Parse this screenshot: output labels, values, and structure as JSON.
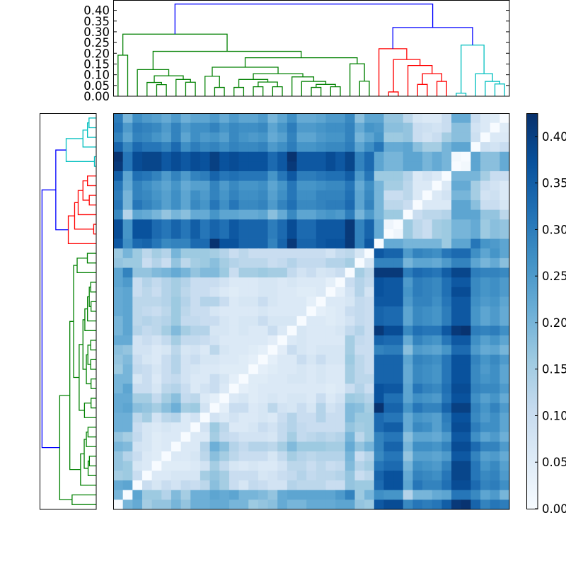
{
  "chart_data": {
    "type": "heatmap",
    "description_kind": "clustered distance matrix with dendrograms",
    "leaves": 41,
    "color_scale": {
      "cmap": "Blues",
      "range": [
        0,
        0.425
      ],
      "stops": [
        "#f7fbff",
        "#deebf7",
        "#c6dbef",
        "#9ecae1",
        "#6baed6",
        "#4292c6",
        "#2171b5",
        "#08519c",
        "#08306b"
      ]
    },
    "colorbar": {
      "ticks": [
        0.0,
        0.05,
        0.1,
        0.15,
        0.2,
        0.25,
        0.3,
        0.35,
        0.4
      ],
      "tick_labels": [
        "0.00",
        "0.05",
        "0.10",
        "0.15",
        "0.20",
        "0.25",
        "0.30",
        "0.35",
        "0.40"
      ]
    },
    "dendrogram_axis": {
      "range": [
        0,
        0.448
      ],
      "ticks": [
        0.0,
        0.05,
        0.1,
        0.15,
        0.2,
        0.25,
        0.3,
        0.35,
        0.4
      ],
      "tick_labels": [
        "0.00",
        "0.05",
        "0.10",
        "0.15",
        "0.20",
        "0.25",
        "0.30",
        "0.35",
        "0.40"
      ]
    },
    "link_colors": {
      "g": "#008000",
      "r": "#ff0000",
      "c": "#00bfbf",
      "b": "#0000ff"
    },
    "linkage": [
      [
        4,
        5,
        0.054,
        "g"
      ],
      [
        3,
        41,
        0.064,
        "g"
      ],
      [
        7,
        8,
        0.065,
        "g"
      ],
      [
        6,
        43,
        0.078,
        "g"
      ],
      [
        42,
        44,
        0.095,
        "g"
      ],
      [
        2,
        45,
        0.124,
        "g"
      ],
      [
        10,
        11,
        0.041,
        "g"
      ],
      [
        9,
        47,
        0.093,
        "g"
      ],
      [
        12,
        13,
        0.041,
        "g"
      ],
      [
        14,
        15,
        0.044,
        "g"
      ],
      [
        16,
        17,
        0.044,
        "g"
      ],
      [
        50,
        51,
        0.066,
        "g"
      ],
      [
        49,
        52,
        0.078,
        "g"
      ],
      [
        20,
        21,
        0.041,
        "g"
      ],
      [
        22,
        23,
        0.044,
        "g"
      ],
      [
        54,
        55,
        0.055,
        "g"
      ],
      [
        19,
        56,
        0.069,
        "g"
      ],
      [
        18,
        57,
        0.09,
        "g"
      ],
      [
        53,
        58,
        0.105,
        "g"
      ],
      [
        48,
        59,
        0.135,
        "g"
      ],
      [
        25,
        26,
        0.07,
        "g"
      ],
      [
        24,
        61,
        0.151,
        "g"
      ],
      [
        60,
        62,
        0.179,
        "g"
      ],
      [
        46,
        63,
        0.209,
        "g"
      ],
      [
        0,
        1,
        0.191,
        "g"
      ],
      [
        65,
        64,
        0.289,
        "g"
      ],
      [
        28,
        29,
        0.02,
        "r"
      ],
      [
        31,
        32,
        0.055,
        "r"
      ],
      [
        33,
        34,
        0.069,
        "r"
      ],
      [
        68,
        69,
        0.105,
        "r"
      ],
      [
        30,
        70,
        0.143,
        "r"
      ],
      [
        67,
        71,
        0.171,
        "r"
      ],
      [
        27,
        72,
        0.221,
        "r"
      ],
      [
        35,
        36,
        0.014,
        "c"
      ],
      [
        39,
        40,
        0.057,
        "c"
      ],
      [
        38,
        75,
        0.069,
        "c"
      ],
      [
        37,
        76,
        0.105,
        "c"
      ],
      [
        74,
        77,
        0.238,
        "c"
      ],
      [
        73,
        78,
        0.32,
        "b"
      ],
      [
        66,
        79,
        0.429,
        "b"
      ]
    ],
    "matrix_lower": [
      [
        0
      ],
      [
        0.2,
        0
      ],
      [
        0.22,
        0.23,
        0
      ],
      [
        0.15,
        0.16,
        0.1,
        0
      ],
      [
        0.17,
        0.16,
        0.07,
        0.06,
        0
      ],
      [
        0.17,
        0.13,
        0.1,
        0.06,
        0.05,
        0
      ],
      [
        0.2,
        0.19,
        0.08,
        0.07,
        0.05,
        0.06,
        0
      ],
      [
        0.17,
        0.15,
        0.11,
        0.07,
        0.05,
        0.06,
        0.06,
        0
      ],
      [
        0.21,
        0.21,
        0.1,
        0.07,
        0.06,
        0.07,
        0.06,
        0.06,
        0
      ],
      [
        0.21,
        0.21,
        0.12,
        0.15,
        0.08,
        0.12,
        0.13,
        0.06,
        0.08,
        0
      ],
      [
        0.22,
        0.23,
        0.18,
        0.17,
        0.15,
        0.18,
        0.21,
        0.15,
        0.16,
        0.08,
        0
      ],
      [
        0.22,
        0.22,
        0.15,
        0.15,
        0.11,
        0.15,
        0.18,
        0.11,
        0.12,
        0.06,
        0.04,
        0
      ],
      [
        0.2,
        0.23,
        0.1,
        0.1,
        0.07,
        0.12,
        0.13,
        0.1,
        0.06,
        0.08,
        0.1,
        0.06,
        0
      ],
      [
        0.2,
        0.2,
        0.07,
        0.1,
        0.06,
        0.1,
        0.11,
        0.08,
        0.06,
        0.06,
        0.1,
        0.07,
        0.04,
        0
      ],
      [
        0.16,
        0.2,
        0.11,
        0.1,
        0.07,
        0.1,
        0.13,
        0.08,
        0.07,
        0.06,
        0.06,
        0.05,
        0.05,
        0.05,
        0
      ],
      [
        0.17,
        0.19,
        0.1,
        0.07,
        0.06,
        0.1,
        0.13,
        0.08,
        0.1,
        0.07,
        0.07,
        0.06,
        0.06,
        0.05,
        0.04,
        0
      ],
      [
        0.18,
        0.17,
        0.08,
        0.08,
        0.06,
        0.07,
        0.12,
        0.07,
        0.08,
        0.06,
        0.12,
        0.07,
        0.06,
        0.06,
        0.05,
        0.04,
        0
      ],
      [
        0.22,
        0.22,
        0.08,
        0.1,
        0.08,
        0.11,
        0.15,
        0.11,
        0.11,
        0.1,
        0.08,
        0.06,
        0.06,
        0.06,
        0.06,
        0.06,
        0.045,
        0
      ],
      [
        0.2,
        0.23,
        0.13,
        0.11,
        0.12,
        0.15,
        0.19,
        0.15,
        0.13,
        0.13,
        0.07,
        0.07,
        0.06,
        0.07,
        0.06,
        0.06,
        0.1,
        0.06,
        0
      ],
      [
        0.2,
        0.23,
        0.12,
        0.13,
        0.12,
        0.13,
        0.16,
        0.11,
        0.11,
        0.1,
        0.1,
        0.07,
        0.06,
        0.07,
        0.07,
        0.1,
        0.07,
        0.07,
        0.07,
        0
      ],
      [
        0.22,
        0.23,
        0.12,
        0.11,
        0.1,
        0.12,
        0.16,
        0.12,
        0.1,
        0.1,
        0.07,
        0.06,
        0.06,
        0.06,
        0.06,
        0.07,
        0.06,
        0.06,
        0.06,
        0.06,
        0
      ],
      [
        0.22,
        0.23,
        0.12,
        0.12,
        0.12,
        0.13,
        0.16,
        0.13,
        0.1,
        0.13,
        0.13,
        0.1,
        0.06,
        0.07,
        0.07,
        0.1,
        0.07,
        0.06,
        0.06,
        0.06,
        0.04,
        0
      ],
      [
        0.22,
        0.23,
        0.1,
        0.12,
        0.1,
        0.13,
        0.15,
        0.12,
        0.1,
        0.1,
        0.08,
        0.06,
        0.05,
        0.06,
        0.06,
        0.07,
        0.07,
        0.06,
        0.06,
        0.05,
        0.05,
        0.06,
        0
      ],
      [
        0.23,
        0.25,
        0.1,
        0.13,
        0.11,
        0.13,
        0.15,
        0.13,
        0.1,
        0.1,
        0.1,
        0.08,
        0.06,
        0.06,
        0.06,
        0.07,
        0.07,
        0.06,
        0.07,
        0.06,
        0.06,
        0.06,
        0.04,
        0
      ],
      [
        0.23,
        0.29,
        0.17,
        0.17,
        0.19,
        0.2,
        0.22,
        0.2,
        0.17,
        0.19,
        0.19,
        0.16,
        0.1,
        0.15,
        0.15,
        0.16,
        0.15,
        0.15,
        0.11,
        0.08,
        0.1,
        0.07,
        0.08,
        0.1,
        0
      ],
      [
        0.17,
        0.16,
        0.16,
        0.1,
        0.13,
        0.1,
        0.17,
        0.12,
        0.15,
        0.16,
        0.18,
        0.15,
        0.13,
        0.12,
        0.12,
        0.12,
        0.1,
        0.11,
        0.13,
        0.11,
        0.11,
        0.11,
        0.13,
        0.13,
        0.15,
        0
      ],
      [
        0.16,
        0.2,
        0.16,
        0.12,
        0.15,
        0.13,
        0.2,
        0.16,
        0.16,
        0.16,
        0.15,
        0.13,
        0.1,
        0.12,
        0.1,
        0.1,
        0.1,
        0.1,
        0.1,
        0.1,
        0.1,
        0.1,
        0.08,
        0.11,
        0.12,
        0.07,
        0
      ],
      [
        0.36,
        0.27,
        0.33,
        0.34,
        0.31,
        0.28,
        0.29,
        0.29,
        0.33,
        0.33,
        0.42,
        0.37,
        0.37,
        0.34,
        0.34,
        0.34,
        0.29,
        0.34,
        0.41,
        0.34,
        0.34,
        0.36,
        0.37,
        0.37,
        0.41,
        0.29,
        0.36,
        0
      ],
      [
        0.38,
        0.26,
        0.37,
        0.37,
        0.33,
        0.31,
        0.34,
        0.31,
        0.35,
        0.31,
        0.34,
        0.32,
        0.36,
        0.34,
        0.34,
        0.34,
        0.3,
        0.33,
        0.38,
        0.33,
        0.33,
        0.36,
        0.36,
        0.36,
        0.41,
        0.29,
        0.34,
        0.22,
        0
      ],
      [
        0.38,
        0.26,
        0.37,
        0.37,
        0.33,
        0.31,
        0.34,
        0.31,
        0.35,
        0.31,
        0.34,
        0.32,
        0.36,
        0.34,
        0.34,
        0.34,
        0.3,
        0.33,
        0.38,
        0.33,
        0.33,
        0.36,
        0.36,
        0.36,
        0.41,
        0.29,
        0.34,
        0.22,
        0.02,
        0
      ],
      [
        0.28,
        0.13,
        0.23,
        0.22,
        0.2,
        0.17,
        0.2,
        0.18,
        0.22,
        0.22,
        0.26,
        0.23,
        0.23,
        0.22,
        0.22,
        0.23,
        0.18,
        0.22,
        0.28,
        0.23,
        0.23,
        0.25,
        0.26,
        0.25,
        0.3,
        0.2,
        0.25,
        0.2,
        0.16,
        0.16,
        0
      ],
      [
        0.31,
        0.2,
        0.31,
        0.29,
        0.27,
        0.24,
        0.27,
        0.23,
        0.28,
        0.26,
        0.31,
        0.27,
        0.31,
        0.28,
        0.28,
        0.29,
        0.25,
        0.29,
        0.32,
        0.28,
        0.28,
        0.29,
        0.3,
        0.3,
        0.33,
        0.23,
        0.29,
        0.2,
        0.12,
        0.12,
        0.1,
        0
      ],
      [
        0.3,
        0.2,
        0.29,
        0.28,
        0.26,
        0.24,
        0.27,
        0.23,
        0.27,
        0.25,
        0.29,
        0.26,
        0.29,
        0.27,
        0.27,
        0.28,
        0.24,
        0.27,
        0.31,
        0.27,
        0.27,
        0.29,
        0.29,
        0.29,
        0.32,
        0.23,
        0.28,
        0.2,
        0.1,
        0.1,
        0.12,
        0.06,
        0
      ],
      [
        0.31,
        0.22,
        0.29,
        0.27,
        0.25,
        0.23,
        0.26,
        0.22,
        0.24,
        0.24,
        0.29,
        0.25,
        0.28,
        0.26,
        0.26,
        0.27,
        0.23,
        0.26,
        0.31,
        0.26,
        0.26,
        0.27,
        0.28,
        0.28,
        0.31,
        0.22,
        0.27,
        0.2,
        0.15,
        0.15,
        0.12,
        0.06,
        0.06,
        0
      ],
      [
        0.35,
        0.23,
        0.32,
        0.31,
        0.29,
        0.25,
        0.29,
        0.25,
        0.29,
        0.3,
        0.34,
        0.31,
        0.32,
        0.31,
        0.31,
        0.31,
        0.26,
        0.31,
        0.36,
        0.3,
        0.3,
        0.31,
        0.32,
        0.32,
        0.35,
        0.25,
        0.31,
        0.16,
        0.16,
        0.16,
        0.13,
        0.06,
        0.08,
        0.06,
        0
      ],
      [
        0.41,
        0.31,
        0.38,
        0.39,
        0.39,
        0.36,
        0.38,
        0.36,
        0.38,
        0.37,
        0.4,
        0.37,
        0.38,
        0.37,
        0.37,
        0.37,
        0.33,
        0.36,
        0.41,
        0.36,
        0.36,
        0.36,
        0.38,
        0.36,
        0.39,
        0.29,
        0.33,
        0.23,
        0.2,
        0.2,
        0.23,
        0.23,
        0.2,
        0.22,
        0.2,
        0
      ],
      [
        0.42,
        0.31,
        0.38,
        0.39,
        0.39,
        0.36,
        0.38,
        0.36,
        0.38,
        0.37,
        0.4,
        0.37,
        0.38,
        0.37,
        0.37,
        0.37,
        0.33,
        0.36,
        0.42,
        0.36,
        0.36,
        0.36,
        0.38,
        0.36,
        0.39,
        0.29,
        0.33,
        0.23,
        0.2,
        0.2,
        0.23,
        0.23,
        0.2,
        0.22,
        0.2,
        0.01,
        0
      ],
      [
        0.34,
        0.28,
        0.33,
        0.31,
        0.31,
        0.29,
        0.33,
        0.27,
        0.3,
        0.28,
        0.29,
        0.27,
        0.29,
        0.28,
        0.28,
        0.29,
        0.25,
        0.27,
        0.3,
        0.26,
        0.26,
        0.27,
        0.28,
        0.28,
        0.3,
        0.23,
        0.27,
        0.31,
        0.22,
        0.22,
        0.23,
        0.18,
        0.15,
        0.15,
        0.2,
        0.23,
        0.23,
        0
      ],
      [
        0.29,
        0.23,
        0.29,
        0.28,
        0.26,
        0.24,
        0.29,
        0.23,
        0.27,
        0.25,
        0.26,
        0.24,
        0.28,
        0.26,
        0.25,
        0.26,
        0.22,
        0.24,
        0.29,
        0.23,
        0.23,
        0.25,
        0.26,
        0.26,
        0.29,
        0.2,
        0.23,
        0.26,
        0.16,
        0.16,
        0.17,
        0.1,
        0.08,
        0.1,
        0.15,
        0.18,
        0.18,
        0.09,
        0
      ],
      [
        0.31,
        0.25,
        0.3,
        0.29,
        0.28,
        0.25,
        0.29,
        0.25,
        0.27,
        0.27,
        0.29,
        0.26,
        0.28,
        0.27,
        0.27,
        0.28,
        0.23,
        0.26,
        0.3,
        0.25,
        0.25,
        0.26,
        0.27,
        0.27,
        0.29,
        0.22,
        0.26,
        0.25,
        0.18,
        0.18,
        0.17,
        0.1,
        0.09,
        0.08,
        0.1,
        0.18,
        0.18,
        0.08,
        0.06,
        0
      ],
      [
        0.3,
        0.2,
        0.27,
        0.25,
        0.24,
        0.22,
        0.25,
        0.21,
        0.23,
        0.23,
        0.25,
        0.22,
        0.25,
        0.23,
        0.23,
        0.25,
        0.2,
        0.23,
        0.27,
        0.22,
        0.22,
        0.23,
        0.25,
        0.25,
        0.28,
        0.18,
        0.23,
        0.23,
        0.17,
        0.17,
        0.12,
        0.07,
        0.06,
        0.06,
        0.1,
        0.22,
        0.22,
        0.1,
        0.06,
        0.05,
        0
      ]
    ]
  }
}
